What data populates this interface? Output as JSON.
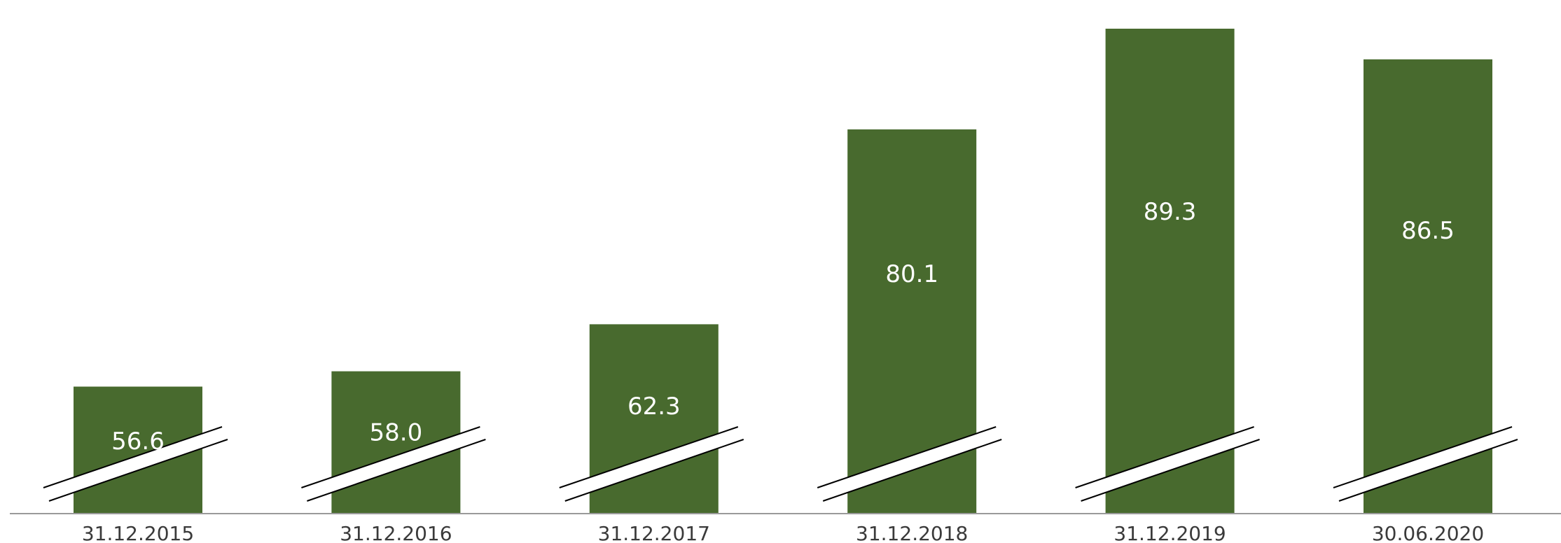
{
  "chart_data": {
    "type": "bar",
    "title": "",
    "xlabel": "",
    "ylabel": "",
    "categories": [
      "31.12.2015",
      "31.12.2016",
      "31.12.2017",
      "31.12.2018",
      "31.12.2019",
      "30.06.2020"
    ],
    "series": [
      {
        "values": [
          56.6,
          58.0,
          62.3,
          80.1,
          89.3,
          86.5
        ],
        "labels": [
          "56.6",
          "58.0",
          "62.3",
          "80.1",
          "89.3",
          "86.5"
        ],
        "color": "#486a2e"
      }
    ],
    "ylim": [
      45,
      90
    ],
    "axis_break": true,
    "grid": false,
    "legend": "none"
  }
}
